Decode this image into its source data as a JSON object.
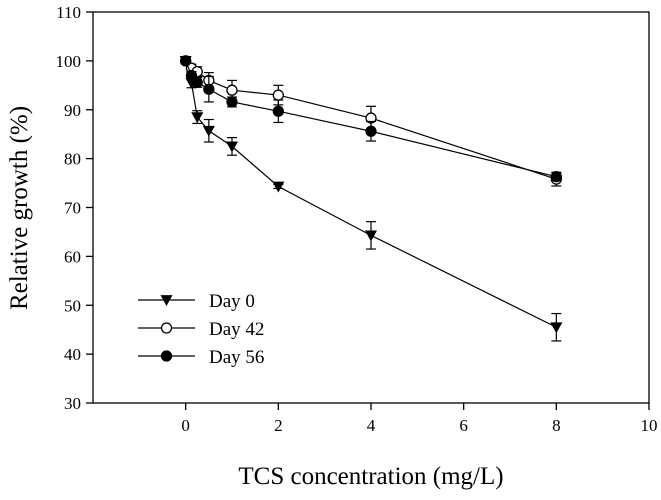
{
  "chart_data": {
    "type": "line",
    "title": "",
    "xlabel": "TCS concentration (mg/L)",
    "ylabel": "Relative growth (%)",
    "xlim": [
      -2,
      10
    ],
    "ylim": [
      30,
      110
    ],
    "xticks": [
      0,
      2,
      4,
      6,
      8,
      10
    ],
    "yticks": [
      30,
      40,
      50,
      60,
      70,
      80,
      90,
      100,
      110
    ],
    "grid": false,
    "legend_position": "bottom-left",
    "series": [
      {
        "name": "Day 0",
        "marker": "triangle-down",
        "fill": "#000000",
        "x": [
          0,
          0.125,
          0.25,
          0.5,
          1,
          2,
          4,
          8
        ],
        "y": [
          100,
          95.5,
          88.5,
          85.7,
          82.5,
          74.3,
          64.3,
          45.5
        ],
        "err": [
          0.6,
          1.0,
          1.3,
          2.3,
          1.8,
          0.4,
          2.8,
          2.8
        ]
      },
      {
        "name": "Day 42",
        "marker": "circle",
        "fill": "#ffffff",
        "x": [
          0,
          0.125,
          0.25,
          0.5,
          1,
          2,
          4,
          8
        ],
        "y": [
          100,
          98.5,
          97.8,
          96.0,
          94.0,
          93.0,
          88.3,
          75.8
        ],
        "err": [
          0.5,
          0.8,
          1.0,
          1.6,
          2.0,
          2.0,
          2.4,
          1.4
        ]
      },
      {
        "name": "Day 56",
        "marker": "circle",
        "fill": "#000000",
        "x": [
          0,
          0.125,
          0.25,
          0.5,
          1,
          2,
          4,
          8
        ],
        "y": [
          100,
          97.0,
          95.6,
          94.2,
          91.6,
          89.7,
          85.6,
          76.3
        ],
        "err": [
          0.4,
          0.8,
          1.0,
          2.6,
          1.0,
          2.3,
          2.0,
          0.8
        ]
      }
    ]
  }
}
